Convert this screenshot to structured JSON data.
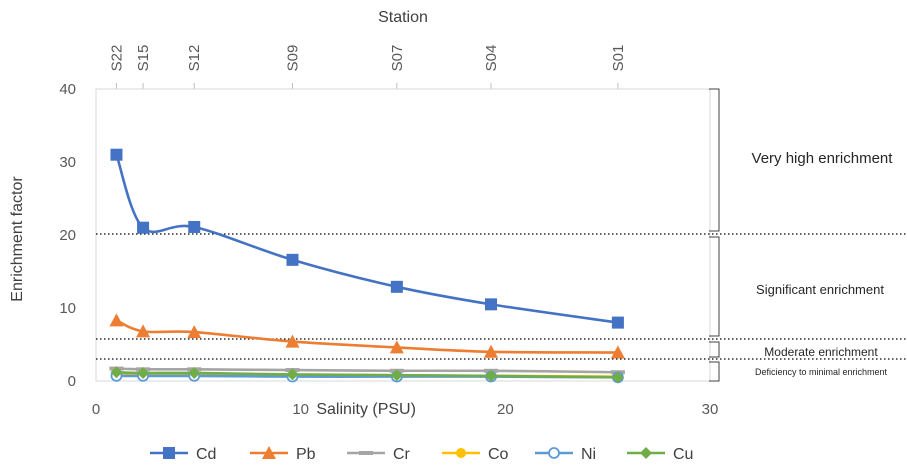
{
  "chart_data": {
    "type": "line",
    "top_axis": {
      "title": "Station",
      "stations": [
        {
          "label": "S22",
          "salinity": 1.0
        },
        {
          "label": "S15",
          "salinity": 2.3
        },
        {
          "label": "S12",
          "salinity": 4.8
        },
        {
          "label": "S09",
          "salinity": 9.6
        },
        {
          "label": "S07",
          "salinity": 14.7
        },
        {
          "label": "S04",
          "salinity": 19.3
        },
        {
          "label": "S01",
          "salinity": 25.5
        }
      ]
    },
    "xlabel": "Salinity (PSU)",
    "ylabel": "Enrichment factor",
    "xlim": [
      0,
      30
    ],
    "ylim": [
      0,
      40
    ],
    "xticks": [
      0,
      10,
      20,
      30
    ],
    "yticks": [
      0,
      10,
      20,
      30,
      40
    ],
    "x": [
      1.0,
      2.3,
      4.8,
      9.6,
      14.7,
      19.3,
      25.5
    ],
    "series": [
      {
        "name": "Cd",
        "color": "#4472C4",
        "marker": "square",
        "values": [
          31.0,
          21.0,
          21.1,
          16.6,
          12.9,
          10.5,
          8.0
        ]
      },
      {
        "name": "Pb",
        "color": "#ED7D31",
        "marker": "triangle",
        "values": [
          8.3,
          6.8,
          6.7,
          5.4,
          4.6,
          4.0,
          3.9
        ]
      },
      {
        "name": "Cr",
        "color": "#A5A5A5",
        "marker": "dash",
        "values": [
          1.7,
          1.6,
          1.6,
          1.5,
          1.4,
          1.4,
          1.2
        ]
      },
      {
        "name": "Co",
        "color": "#FFC000",
        "marker": "circle",
        "values": [
          1.0,
          0.9,
          0.9,
          0.8,
          0.7,
          0.7,
          0.6
        ]
      },
      {
        "name": "Ni",
        "color": "#5B9BD5",
        "marker": "open-circle",
        "values": [
          0.7,
          0.7,
          0.7,
          0.6,
          0.6,
          0.6,
          0.5
        ]
      },
      {
        "name": "Cu",
        "color": "#70AD47",
        "marker": "diamond",
        "values": [
          1.2,
          1.1,
          1.1,
          0.9,
          0.8,
          0.7,
          0.5
        ]
      }
    ],
    "thresholds": [
      20,
      5,
      2
    ],
    "bands": [
      {
        "label": "Very high enrichment",
        "from": 20,
        "to": 40
      },
      {
        "label": "Significant enrichment",
        "from": 5,
        "to": 20
      },
      {
        "label": "Moderate enrichment",
        "from": 2,
        "to": 5
      },
      {
        "label": "Deficiency to minimal enrichment",
        "from": 0,
        "to": 2
      }
    ],
    "legend_position": "bottom",
    "grid": false
  }
}
